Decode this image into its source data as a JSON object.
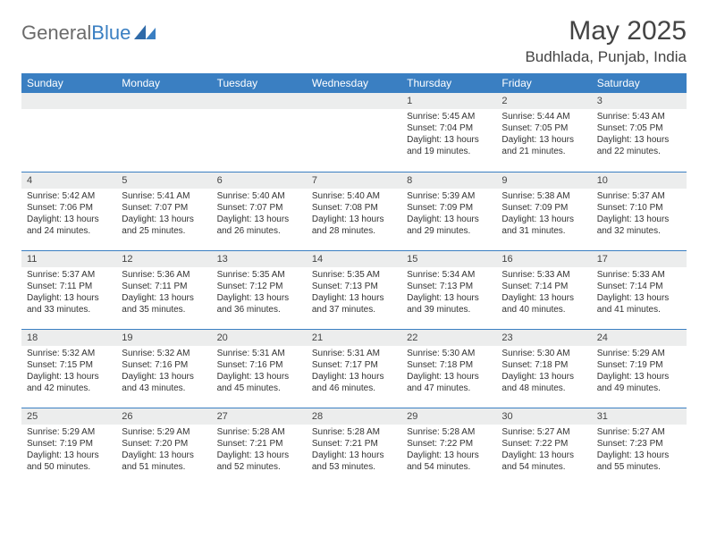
{
  "brand": {
    "text1": "General",
    "text2": "Blue"
  },
  "title": "May 2025",
  "location": "Budhlada, Punjab, India",
  "colors": {
    "header_bg": "#3a7fc2",
    "header_text": "#ffffff",
    "strip_bg": "#eceded",
    "border": "#3a7fc2",
    "body_text": "#333333",
    "title_text": "#444444"
  },
  "weekdays": [
    "Sunday",
    "Monday",
    "Tuesday",
    "Wednesday",
    "Thursday",
    "Friday",
    "Saturday"
  ],
  "weeks": [
    [
      {
        "blank": true
      },
      {
        "blank": true
      },
      {
        "blank": true
      },
      {
        "blank": true
      },
      {
        "n": "1",
        "sr": "Sunrise: 5:45 AM",
        "ss": "Sunset: 7:04 PM",
        "d1": "Daylight: 13 hours",
        "d2": "and 19 minutes."
      },
      {
        "n": "2",
        "sr": "Sunrise: 5:44 AM",
        "ss": "Sunset: 7:05 PM",
        "d1": "Daylight: 13 hours",
        "d2": "and 21 minutes."
      },
      {
        "n": "3",
        "sr": "Sunrise: 5:43 AM",
        "ss": "Sunset: 7:05 PM",
        "d1": "Daylight: 13 hours",
        "d2": "and 22 minutes."
      }
    ],
    [
      {
        "n": "4",
        "sr": "Sunrise: 5:42 AM",
        "ss": "Sunset: 7:06 PM",
        "d1": "Daylight: 13 hours",
        "d2": "and 24 minutes."
      },
      {
        "n": "5",
        "sr": "Sunrise: 5:41 AM",
        "ss": "Sunset: 7:07 PM",
        "d1": "Daylight: 13 hours",
        "d2": "and 25 minutes."
      },
      {
        "n": "6",
        "sr": "Sunrise: 5:40 AM",
        "ss": "Sunset: 7:07 PM",
        "d1": "Daylight: 13 hours",
        "d2": "and 26 minutes."
      },
      {
        "n": "7",
        "sr": "Sunrise: 5:40 AM",
        "ss": "Sunset: 7:08 PM",
        "d1": "Daylight: 13 hours",
        "d2": "and 28 minutes."
      },
      {
        "n": "8",
        "sr": "Sunrise: 5:39 AM",
        "ss": "Sunset: 7:09 PM",
        "d1": "Daylight: 13 hours",
        "d2": "and 29 minutes."
      },
      {
        "n": "9",
        "sr": "Sunrise: 5:38 AM",
        "ss": "Sunset: 7:09 PM",
        "d1": "Daylight: 13 hours",
        "d2": "and 31 minutes."
      },
      {
        "n": "10",
        "sr": "Sunrise: 5:37 AM",
        "ss": "Sunset: 7:10 PM",
        "d1": "Daylight: 13 hours",
        "d2": "and 32 minutes."
      }
    ],
    [
      {
        "n": "11",
        "sr": "Sunrise: 5:37 AM",
        "ss": "Sunset: 7:11 PM",
        "d1": "Daylight: 13 hours",
        "d2": "and 33 minutes."
      },
      {
        "n": "12",
        "sr": "Sunrise: 5:36 AM",
        "ss": "Sunset: 7:11 PM",
        "d1": "Daylight: 13 hours",
        "d2": "and 35 minutes."
      },
      {
        "n": "13",
        "sr": "Sunrise: 5:35 AM",
        "ss": "Sunset: 7:12 PM",
        "d1": "Daylight: 13 hours",
        "d2": "and 36 minutes."
      },
      {
        "n": "14",
        "sr": "Sunrise: 5:35 AM",
        "ss": "Sunset: 7:13 PM",
        "d1": "Daylight: 13 hours",
        "d2": "and 37 minutes."
      },
      {
        "n": "15",
        "sr": "Sunrise: 5:34 AM",
        "ss": "Sunset: 7:13 PM",
        "d1": "Daylight: 13 hours",
        "d2": "and 39 minutes."
      },
      {
        "n": "16",
        "sr": "Sunrise: 5:33 AM",
        "ss": "Sunset: 7:14 PM",
        "d1": "Daylight: 13 hours",
        "d2": "and 40 minutes."
      },
      {
        "n": "17",
        "sr": "Sunrise: 5:33 AM",
        "ss": "Sunset: 7:14 PM",
        "d1": "Daylight: 13 hours",
        "d2": "and 41 minutes."
      }
    ],
    [
      {
        "n": "18",
        "sr": "Sunrise: 5:32 AM",
        "ss": "Sunset: 7:15 PM",
        "d1": "Daylight: 13 hours",
        "d2": "and 42 minutes."
      },
      {
        "n": "19",
        "sr": "Sunrise: 5:32 AM",
        "ss": "Sunset: 7:16 PM",
        "d1": "Daylight: 13 hours",
        "d2": "and 43 minutes."
      },
      {
        "n": "20",
        "sr": "Sunrise: 5:31 AM",
        "ss": "Sunset: 7:16 PM",
        "d1": "Daylight: 13 hours",
        "d2": "and 45 minutes."
      },
      {
        "n": "21",
        "sr": "Sunrise: 5:31 AM",
        "ss": "Sunset: 7:17 PM",
        "d1": "Daylight: 13 hours",
        "d2": "and 46 minutes."
      },
      {
        "n": "22",
        "sr": "Sunrise: 5:30 AM",
        "ss": "Sunset: 7:18 PM",
        "d1": "Daylight: 13 hours",
        "d2": "and 47 minutes."
      },
      {
        "n": "23",
        "sr": "Sunrise: 5:30 AM",
        "ss": "Sunset: 7:18 PM",
        "d1": "Daylight: 13 hours",
        "d2": "and 48 minutes."
      },
      {
        "n": "24",
        "sr": "Sunrise: 5:29 AM",
        "ss": "Sunset: 7:19 PM",
        "d1": "Daylight: 13 hours",
        "d2": "and 49 minutes."
      }
    ],
    [
      {
        "n": "25",
        "sr": "Sunrise: 5:29 AM",
        "ss": "Sunset: 7:19 PM",
        "d1": "Daylight: 13 hours",
        "d2": "and 50 minutes."
      },
      {
        "n": "26",
        "sr": "Sunrise: 5:29 AM",
        "ss": "Sunset: 7:20 PM",
        "d1": "Daylight: 13 hours",
        "d2": "and 51 minutes."
      },
      {
        "n": "27",
        "sr": "Sunrise: 5:28 AM",
        "ss": "Sunset: 7:21 PM",
        "d1": "Daylight: 13 hours",
        "d2": "and 52 minutes."
      },
      {
        "n": "28",
        "sr": "Sunrise: 5:28 AM",
        "ss": "Sunset: 7:21 PM",
        "d1": "Daylight: 13 hours",
        "d2": "and 53 minutes."
      },
      {
        "n": "29",
        "sr": "Sunrise: 5:28 AM",
        "ss": "Sunset: 7:22 PM",
        "d1": "Daylight: 13 hours",
        "d2": "and 54 minutes."
      },
      {
        "n": "30",
        "sr": "Sunrise: 5:27 AM",
        "ss": "Sunset: 7:22 PM",
        "d1": "Daylight: 13 hours",
        "d2": "and 54 minutes."
      },
      {
        "n": "31",
        "sr": "Sunrise: 5:27 AM",
        "ss": "Sunset: 7:23 PM",
        "d1": "Daylight: 13 hours",
        "d2": "and 55 minutes."
      }
    ]
  ]
}
